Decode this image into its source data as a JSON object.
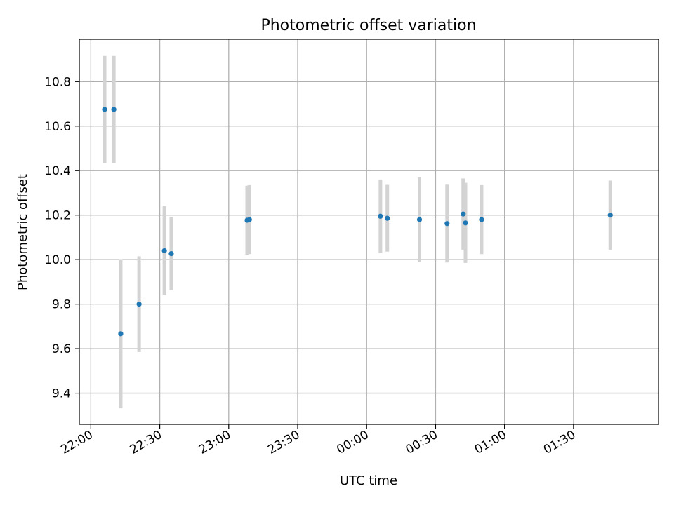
{
  "chart_data": {
    "type": "scatter",
    "title": "Photometric offset variation",
    "xlabel": "UTC time",
    "ylabel": "Photometric offset",
    "x_ticks": [
      "22:00",
      "22:30",
      "23:00",
      "23:30",
      "00:00",
      "00:30",
      "01:00",
      "01:30"
    ],
    "y_ticks": [
      "9.4",
      "9.6",
      "9.8",
      "10.0",
      "10.2",
      "10.4",
      "10.6",
      "10.8"
    ],
    "xlim": [
      "21:55",
      "02:07"
    ],
    "ylim": [
      9.26,
      10.99
    ],
    "grid": true,
    "legend": "none",
    "colors": {
      "marker": "#1f77b4",
      "errorbar": "#d3d3d3",
      "grid": "#b0b0b0"
    },
    "points": [
      {
        "x": "22:06",
        "y": 10.675,
        "yerr": 0.24
      },
      {
        "x": "22:10",
        "y": 10.675,
        "yerr": 0.24
      },
      {
        "x": "22:13",
        "y": 9.667,
        "yerr": 0.335
      },
      {
        "x": "22:21",
        "y": 9.8,
        "yerr": 0.215
      },
      {
        "x": "22:32",
        "y": 10.04,
        "yerr": 0.2
      },
      {
        "x": "22:35",
        "y": 10.027,
        "yerr": 0.165
      },
      {
        "x": "23:08",
        "y": 10.177,
        "yerr": 0.155
      },
      {
        "x": "23:09",
        "y": 10.18,
        "yerr": 0.155
      },
      {
        "x": "00:06",
        "y": 10.195,
        "yerr": 0.165
      },
      {
        "x": "00:09",
        "y": 10.186,
        "yerr": 0.15
      },
      {
        "x": "00:23",
        "y": 10.18,
        "yerr": 0.19
      },
      {
        "x": "00:35",
        "y": 10.162,
        "yerr": 0.175
      },
      {
        "x": "00:42",
        "y": 10.205,
        "yerr": 0.16
      },
      {
        "x": "00:43",
        "y": 10.165,
        "yerr": 0.18
      },
      {
        "x": "00:50",
        "y": 10.18,
        "yerr": 0.155
      },
      {
        "x": "01:46",
        "y": 10.2,
        "yerr": 0.155
      }
    ]
  }
}
